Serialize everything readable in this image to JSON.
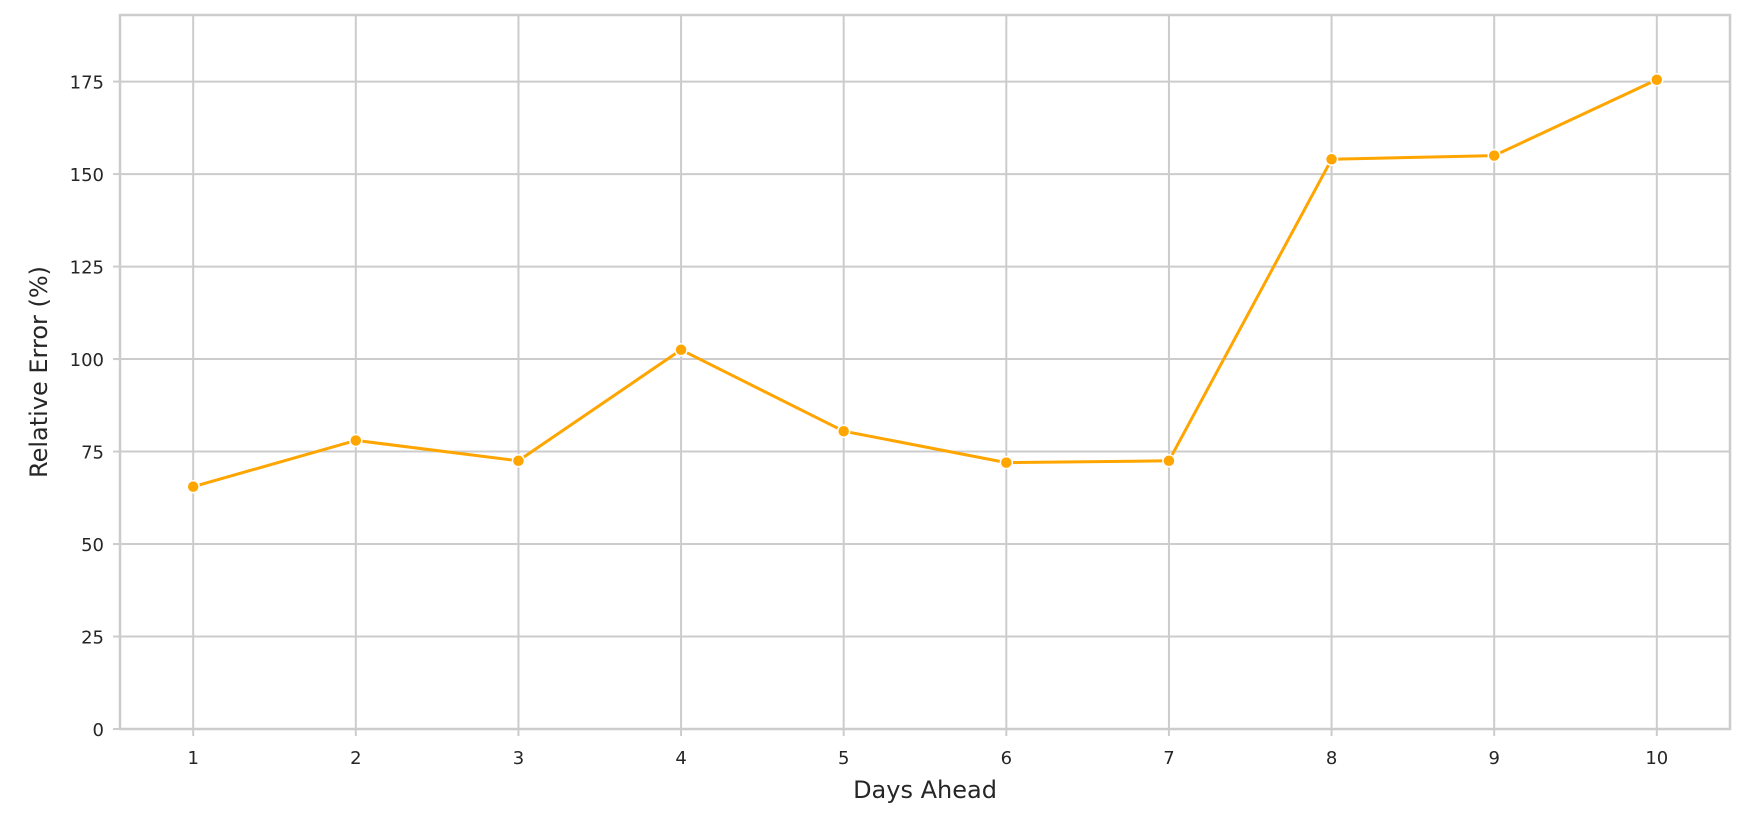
{
  "chart_data": {
    "type": "line",
    "title": "",
    "xlabel": "Days Ahead",
    "ylabel": "Relative Error (%)",
    "x": [
      1,
      2,
      3,
      4,
      5,
      6,
      7,
      8,
      9,
      10
    ],
    "series": [
      {
        "values": [
          65.5,
          78,
          72.5,
          102.5,
          80.5,
          72,
          72.5,
          154,
          155,
          175.5
        ],
        "color": "#FFA500"
      }
    ],
    "xlim": [
      0.55,
      10.45
    ],
    "ylim": [
      0,
      193
    ],
    "yticks": [
      0,
      25,
      50,
      75,
      100,
      125,
      150,
      175
    ],
    "grid": true,
    "legend": "none"
  }
}
